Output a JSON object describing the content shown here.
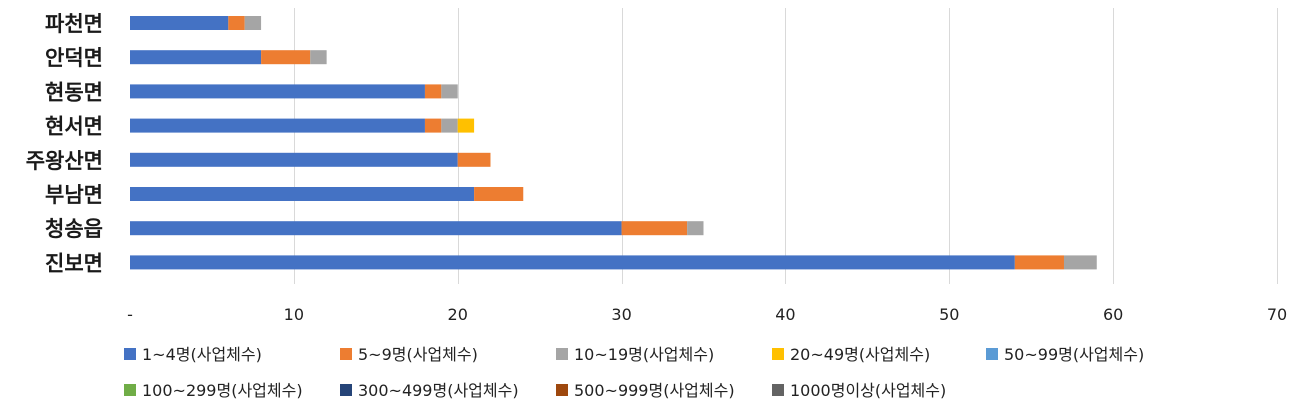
{
  "chart_data": {
    "type": "bar",
    "orientation": "horizontal",
    "stacked": true,
    "title": "",
    "xlabel": "",
    "ylabel": "",
    "categories": [
      "파천면",
      "안덕면",
      "현동면",
      "현서면",
      "주왕산면",
      "부남면",
      "청송읍",
      "진보면"
    ],
    "xlim": [
      0,
      70
    ],
    "xticks": [
      0,
      10,
      20,
      30,
      40,
      50,
      60,
      70
    ],
    "xtick_labels": [
      "-",
      "10",
      "20",
      "30",
      "40",
      "50",
      "60",
      "70"
    ],
    "grid": "vertical",
    "legend_position": "bottom",
    "series": [
      {
        "name": "1~4명(사업체수)",
        "color": "#4472C4",
        "values": [
          6,
          8,
          18,
          18,
          20,
          21,
          30,
          54
        ]
      },
      {
        "name": "5~9명(사업체수)",
        "color": "#ED7D31",
        "values": [
          1,
          3,
          1,
          1,
          2,
          3,
          4,
          3
        ]
      },
      {
        "name": "10~19명(사업체수)",
        "color": "#A5A5A5",
        "values": [
          1,
          1,
          1,
          1,
          0,
          0,
          1,
          2
        ]
      },
      {
        "name": "20~49명(사업체수)",
        "color": "#FFC000",
        "values": [
          0,
          0,
          0,
          1,
          0,
          0,
          0,
          0
        ]
      },
      {
        "name": "50~99명(사업체수)",
        "color": "#5B9BD5",
        "values": [
          0,
          0,
          0,
          0,
          0,
          0,
          0,
          0
        ]
      },
      {
        "name": "100~299명(사업체수)",
        "color": "#70AD47",
        "values": [
          0,
          0,
          0,
          0,
          0,
          0,
          0,
          0
        ]
      },
      {
        "name": "300~499명(사업체수)",
        "color": "#264478",
        "values": [
          0,
          0,
          0,
          0,
          0,
          0,
          0,
          0
        ]
      },
      {
        "name": "500~999명(사업체수)",
        "color": "#9E480E",
        "values": [
          0,
          0,
          0,
          0,
          0,
          0,
          0,
          0
        ]
      },
      {
        "name": "1000명이상(사업체수)",
        "color": "#636363",
        "values": [
          0,
          0,
          0,
          0,
          0,
          0,
          0,
          0
        ]
      }
    ]
  }
}
